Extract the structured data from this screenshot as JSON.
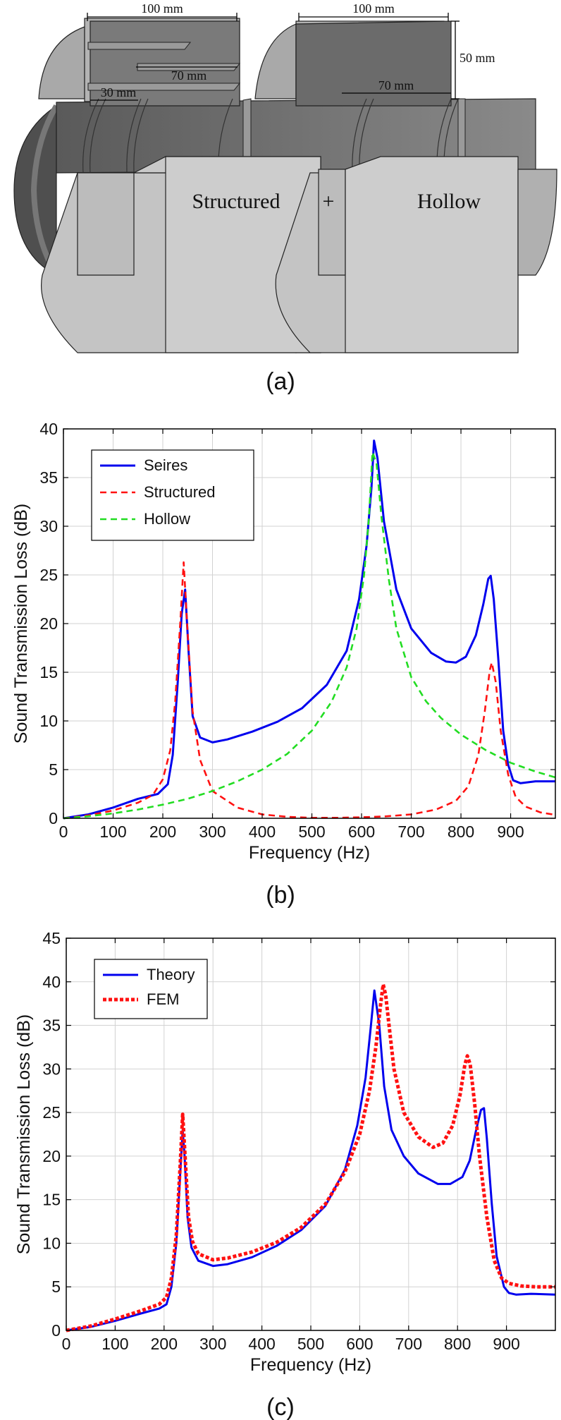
{
  "figure_a": {
    "dimensions": [
      "100 mm",
      "100 mm",
      "50 mm",
      "70 mm",
      "70 mm",
      "30 mm"
    ],
    "label_structured": "Structured",
    "label_plus": "+",
    "label_hollow": "Hollow",
    "caption": "(a)"
  },
  "chart_data": [
    {
      "id": "b",
      "type": "line",
      "caption": "(b)",
      "title": "",
      "xlabel": "Frequency (Hz)",
      "ylabel": "Sound Transmission Loss (dB)",
      "xlim": [
        0,
        990
      ],
      "ylim": [
        0,
        40
      ],
      "xticks": [
        0,
        100,
        200,
        300,
        400,
        500,
        600,
        700,
        800,
        900
      ],
      "yticks": [
        0,
        5,
        10,
        15,
        20,
        25,
        30,
        35,
        40
      ],
      "grid": true,
      "legend_position": "top-left",
      "series": [
        {
          "name": "Seires",
          "color": "#0000ee",
          "style": "solid",
          "x": [
            0,
            50,
            100,
            150,
            190,
            210,
            220,
            230,
            238,
            245,
            252,
            260,
            275,
            300,
            330,
            380,
            430,
            480,
            530,
            570,
            595,
            610,
            620,
            625,
            632,
            645,
            670,
            700,
            740,
            770,
            790,
            810,
            830,
            845,
            855,
            860,
            866,
            875,
            885,
            895,
            905,
            920,
            950,
            990
          ],
          "y": [
            0,
            0.4,
            1.1,
            2.0,
            2.5,
            3.5,
            6.5,
            14,
            21,
            23.5,
            17,
            10.5,
            8.3,
            7.8,
            8.1,
            8.9,
            9.9,
            11.3,
            13.7,
            17.2,
            22.5,
            28,
            34,
            38.8,
            37,
            30.5,
            23.5,
            19.5,
            17,
            16.1,
            16,
            16.6,
            18.8,
            22,
            24.6,
            24.9,
            22.5,
            16.5,
            9,
            5.5,
            3.9,
            3.6,
            3.8,
            3.8
          ]
        },
        {
          "name": "Structured",
          "color": "#ff1111",
          "style": "dashed",
          "x": [
            0,
            50,
            100,
            150,
            180,
            200,
            215,
            225,
            235,
            242,
            250,
            260,
            275,
            300,
            350,
            400,
            450,
            500,
            550,
            600,
            650,
            700,
            750,
            790,
            815,
            835,
            848,
            858,
            862,
            870,
            880,
            895,
            910,
            930,
            960,
            990
          ],
          "y": [
            0,
            0.3,
            0.8,
            1.6,
            2.4,
            4,
            7,
            12,
            20,
            26.3,
            19,
            11,
            6,
            2.8,
            1.1,
            0.4,
            0.15,
            0.05,
            0.05,
            0.1,
            0.2,
            0.4,
            0.9,
            1.8,
            3.3,
            6.5,
            11,
            15.2,
            16,
            14,
            9,
            4.5,
            2.2,
            1.2,
            0.6,
            0.35
          ]
        },
        {
          "name": "Hollow",
          "color": "#22dd22",
          "style": "dashed",
          "x": [
            0,
            50,
            100,
            150,
            200,
            250,
            300,
            350,
            400,
            450,
            500,
            540,
            570,
            590,
            605,
            615,
            622,
            630,
            640,
            655,
            670,
            700,
            730,
            760,
            800,
            850,
            900,
            950,
            990
          ],
          "y": [
            0,
            0.2,
            0.5,
            0.9,
            1.4,
            2.0,
            2.8,
            3.8,
            5.0,
            6.6,
            9.0,
            12,
            15.5,
            19.5,
            25,
            31,
            37.6,
            36.5,
            31,
            24.5,
            19.5,
            14.5,
            12,
            10.3,
            8.6,
            7,
            5.7,
            4.8,
            4.2
          ]
        }
      ]
    },
    {
      "id": "c",
      "type": "line",
      "caption": "(c)",
      "title": "",
      "xlabel": "Frequency (Hz)",
      "ylabel": "Sound Transmission Loss (dB)",
      "xlim": [
        0,
        1000
      ],
      "ylim": [
        0,
        45
      ],
      "xticks": [
        0,
        100,
        200,
        300,
        400,
        500,
        600,
        700,
        800,
        900
      ],
      "yticks": [
        0,
        5,
        10,
        15,
        20,
        25,
        30,
        35,
        40,
        45
      ],
      "grid": true,
      "legend_position": "top-left",
      "series": [
        {
          "name": "Theory",
          "color": "#0000ee",
          "style": "solid",
          "x": [
            0,
            50,
            100,
            150,
            190,
            205,
            215,
            225,
            233,
            238,
            242,
            248,
            256,
            270,
            300,
            330,
            380,
            430,
            480,
            530,
            570,
            595,
            612,
            622,
            630,
            640,
            650,
            665,
            690,
            720,
            760,
            785,
            810,
            825,
            838,
            848,
            854,
            860,
            870,
            880,
            895,
            905,
            920,
            950,
            1000
          ],
          "y": [
            0,
            0.4,
            1.1,
            1.9,
            2.5,
            3,
            5,
            10,
            18,
            23,
            20,
            13,
            9.5,
            8,
            7.4,
            7.6,
            8.4,
            9.7,
            11.5,
            14.3,
            18.5,
            23.5,
            29,
            34.5,
            39,
            35,
            28,
            23,
            20,
            18,
            16.8,
            16.8,
            17.6,
            19.5,
            23,
            25.3,
            25.5,
            22,
            14.5,
            8.5,
            5,
            4.3,
            4.1,
            4.2,
            4.1
          ]
        },
        {
          "name": "FEM",
          "color": "#ff1111",
          "style": "dotted",
          "x": [
            0,
            50,
            100,
            150,
            190,
            205,
            215,
            225,
            233,
            238,
            243,
            250,
            258,
            270,
            300,
            330,
            380,
            430,
            480,
            530,
            570,
            600,
            620,
            633,
            643,
            648,
            653,
            660,
            670,
            690,
            720,
            750,
            770,
            790,
            805,
            815,
            820,
            826,
            835,
            845,
            860,
            875,
            890,
            905,
            930,
            960,
            1000
          ],
          "y": [
            0,
            0.5,
            1.3,
            2.2,
            3,
            3.8,
            6,
            11,
            19,
            24.8,
            20,
            13,
            10.2,
            8.8,
            8.1,
            8.3,
            9,
            10.1,
            11.8,
            14.5,
            18.2,
            22.5,
            27.5,
            32.5,
            37.5,
            39.7,
            38.5,
            35,
            30,
            25,
            22.2,
            21,
            21.5,
            23.5,
            27,
            30.5,
            31.5,
            30.5,
            26,
            20,
            13,
            8,
            6,
            5.4,
            5.1,
            5,
            5
          ]
        }
      ]
    }
  ]
}
